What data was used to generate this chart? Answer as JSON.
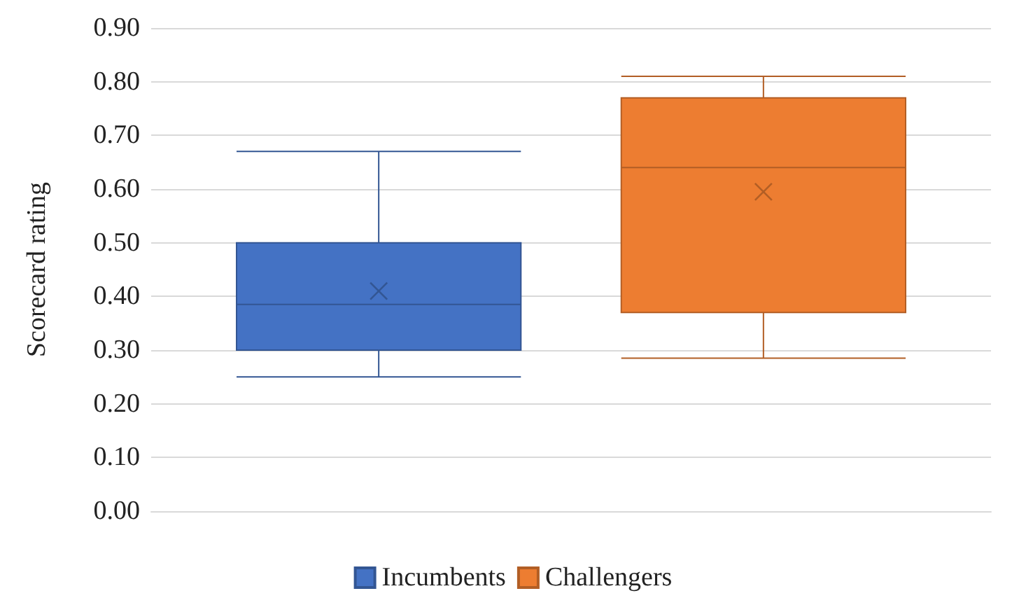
{
  "chart_data": {
    "type": "box",
    "ylabel": "Scorecard rating",
    "categories": [
      null
    ],
    "series": [
      {
        "name": "Incumbents",
        "color": "#4472c4",
        "boxes": [
          {
            "low": 0.25,
            "q1": 0.3,
            "median": 0.385,
            "q3": 0.5,
            "high": 0.67,
            "mean": 0.41
          }
        ]
      },
      {
        "name": "Challengers",
        "color": "#ed7d31",
        "boxes": [
          {
            "low": 0.285,
            "q1": 0.37,
            "median": 0.64,
            "q3": 0.77,
            "high": 0.81,
            "mean": 0.595
          }
        ]
      }
    ],
    "ylim": [
      0,
      0.9
    ],
    "yticks": [
      {
        "value": 0,
        "label": "0.00"
      },
      {
        "value": 0.1,
        "label": "0.10"
      },
      {
        "value": 0.2,
        "label": "0.20"
      },
      {
        "value": 0.3,
        "label": "0.30"
      },
      {
        "value": 0.4,
        "label": "0.40"
      },
      {
        "value": 0.5,
        "label": "0.50"
      },
      {
        "value": 0.6,
        "label": "0.60"
      },
      {
        "value": 0.7,
        "label": "0.70"
      },
      {
        "value": 0.8,
        "label": "0.80"
      },
      {
        "value": 0.9,
        "label": "0.90"
      }
    ],
    "grid": "y",
    "legend": "bottom"
  }
}
